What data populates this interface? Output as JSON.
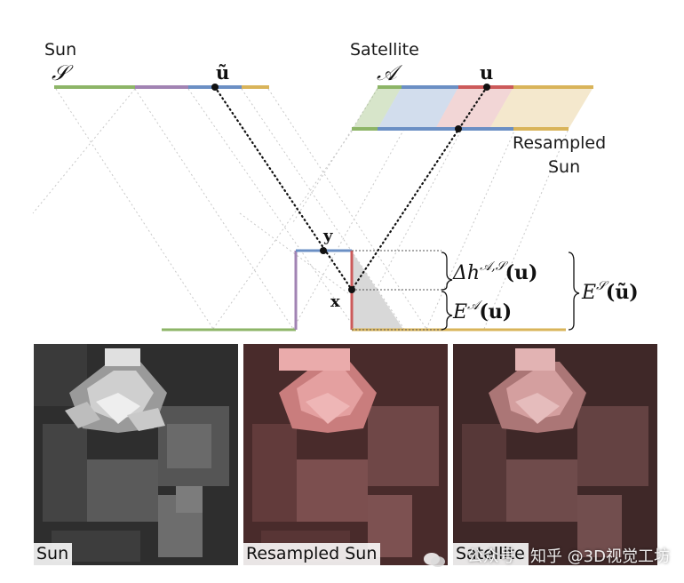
{
  "diagram": {
    "labels": {
      "sun": "Sun",
      "sun_symbol": "𝒮",
      "satellite": "Satellite",
      "satellite_symbol": "𝒜",
      "u_tilde": "ũ",
      "u": "u",
      "resampled_line1": "Resampled",
      "resampled_line2": "Sun",
      "y": "y",
      "x": "x",
      "delta_h": "Δh",
      "delta_h_sup": "𝒜,𝒮",
      "delta_h_arg": "(u)",
      "e_a": "E",
      "e_a_sup": "𝒜",
      "e_a_arg": "(u)",
      "e_s": "E",
      "e_s_sup": "𝒮",
      "e_s_arg": "(ũ)"
    },
    "colors": {
      "green": "#8db567",
      "purple": "#a183b3",
      "blue": "#6b8fc4",
      "red": "#cc5a5a",
      "yellow": "#d9b45a"
    }
  },
  "panels": [
    {
      "caption": "Sun",
      "tint": "none"
    },
    {
      "caption": "Resampled Sun",
      "tint": "red"
    },
    {
      "caption": "Satellite",
      "tint": "red"
    }
  ],
  "watermark": {
    "text": "公众号 · 知乎 @3D视觉工坊",
    "icon": "wechat-icon"
  }
}
